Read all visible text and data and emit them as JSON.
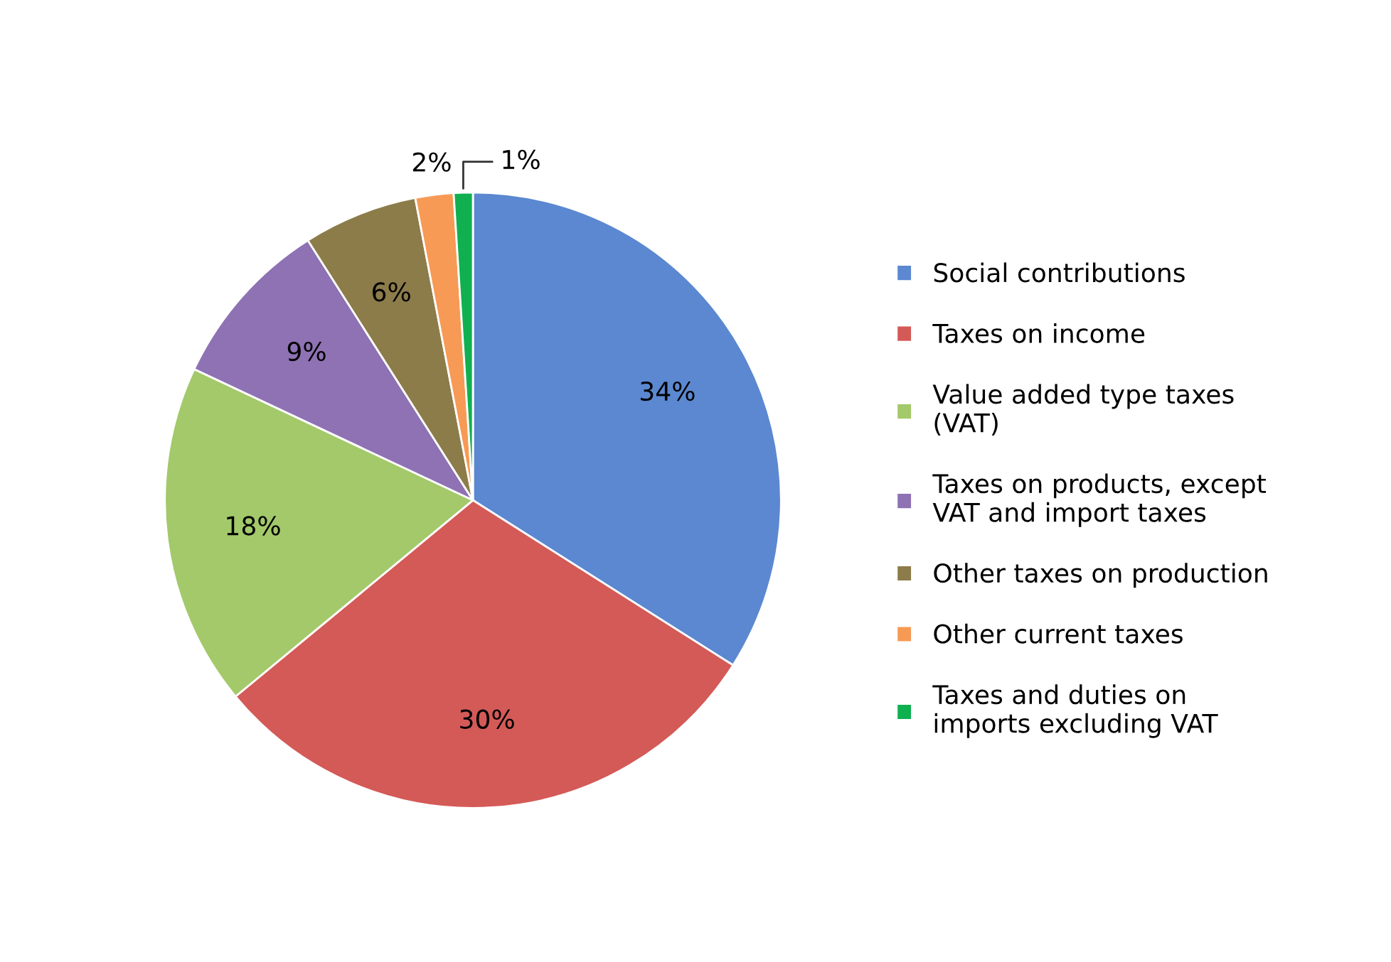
{
  "chart_data": {
    "type": "pie",
    "categories": [
      "Social contributions",
      "Taxes on income",
      "Value added type taxes\n(VAT)",
      "Taxes on products, except\nVAT and import taxes",
      "Other taxes on production",
      "Other current taxes",
      "Taxes and duties on\nimports excluding VAT"
    ],
    "values": [
      34,
      30,
      18,
      9,
      6,
      2,
      1
    ],
    "colors": [
      "#5b88d0",
      "#d45a57",
      "#a3c96a",
      "#8e72b3",
      "#8c7c4a",
      "#f79a55",
      "#10b050"
    ],
    "value_labels": [
      "34%",
      "30%",
      "18%",
      "9%",
      "6%",
      "2%",
      "1%"
    ],
    "legend": "right"
  }
}
